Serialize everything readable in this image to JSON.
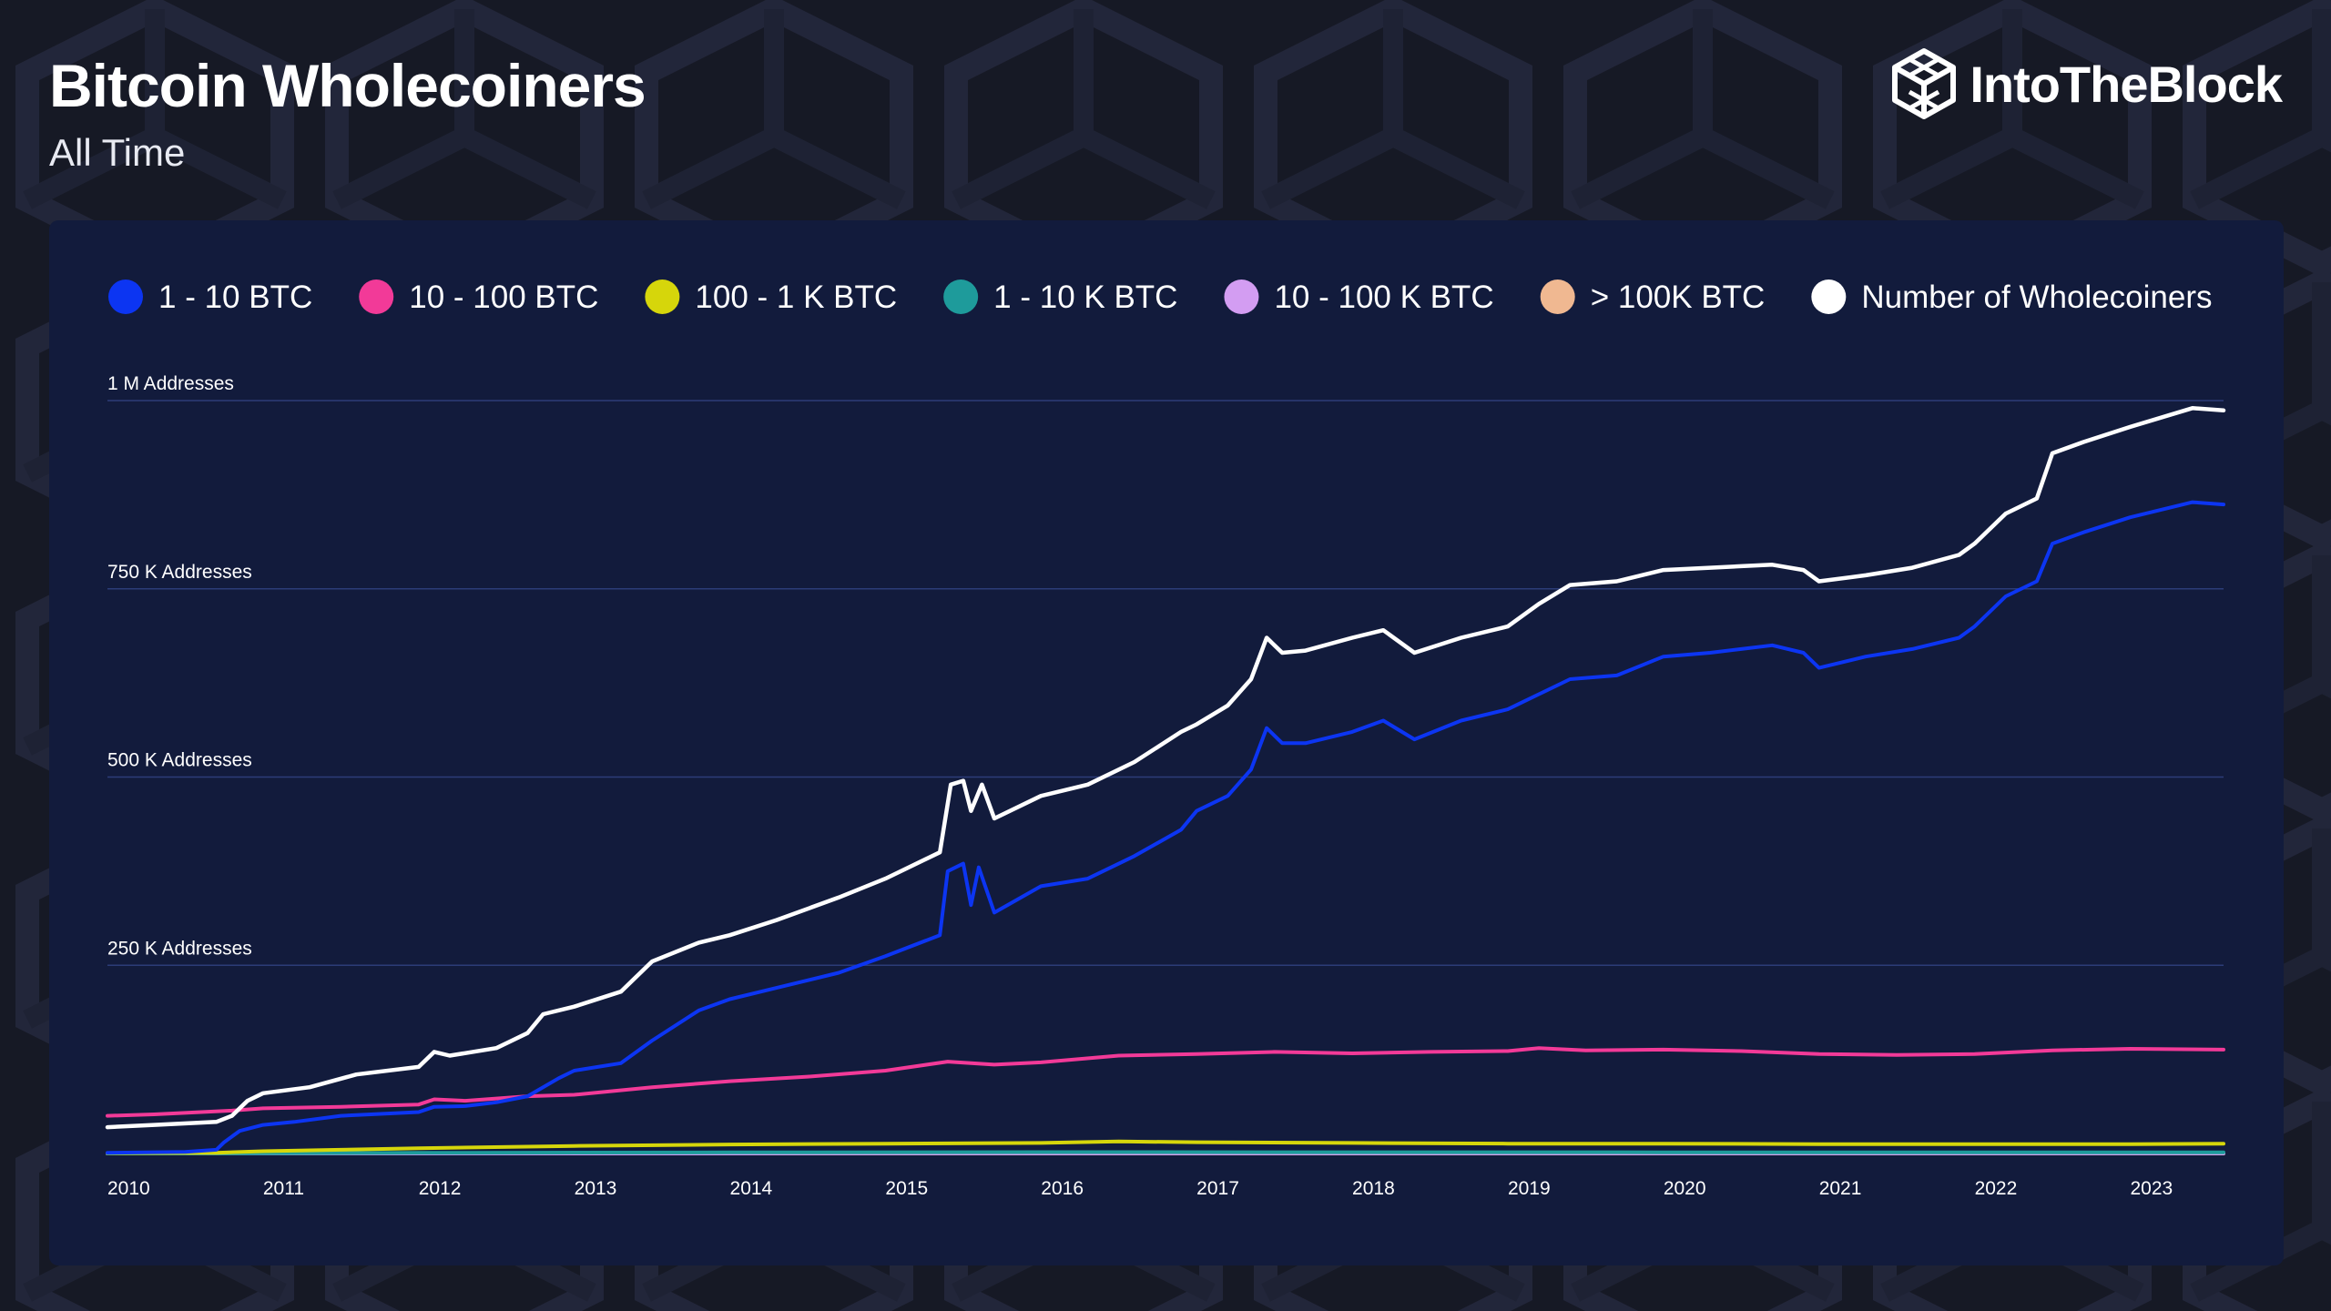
{
  "header": {
    "title": "Bitcoin Wholecoiners",
    "subtitle": "All Time",
    "brand": "IntoTheBlock"
  },
  "colors": {
    "background": "#161925",
    "panel": "#121b3c",
    "grid": "#2c3c78"
  },
  "chart_data": {
    "type": "line",
    "title": "Bitcoin Wholecoiners",
    "subtitle": "All Time",
    "xlim": [
      2010.0,
      2023.6
    ],
    "ylim": [
      0,
      1000000
    ],
    "yticks": [
      {
        "value": 250000,
        "label": "250 K Addresses"
      },
      {
        "value": 500000,
        "label": "500 K Addresses"
      },
      {
        "value": 750000,
        "label": "750 K Addresses"
      },
      {
        "value": 1000000,
        "label": "1 M Addresses"
      }
    ],
    "xticks": [
      {
        "value": 2010,
        "label": "2010"
      },
      {
        "value": 2011,
        "label": "2011"
      },
      {
        "value": 2012,
        "label": "2012"
      },
      {
        "value": 2013,
        "label": "2013"
      },
      {
        "value": 2014,
        "label": "2014"
      },
      {
        "value": 2015,
        "label": "2015"
      },
      {
        "value": 2016,
        "label": "2016"
      },
      {
        "value": 2017,
        "label": "2017"
      },
      {
        "value": 2018,
        "label": "2018"
      },
      {
        "value": 2019,
        "label": "2019"
      },
      {
        "value": 2020,
        "label": "2020"
      },
      {
        "value": 2021,
        "label": "2021"
      },
      {
        "value": 2022,
        "label": "2022"
      },
      {
        "value": 2023,
        "label": "2023"
      }
    ],
    "grid": true,
    "legend_position": "top-left",
    "series": [
      {
        "name": "1 - 10 BTC",
        "color": "#0c35f2",
        "points": [
          [
            2010.0,
            1000
          ],
          [
            2010.5,
            2000
          ],
          [
            2010.7,
            5000
          ],
          [
            2010.75,
            15000
          ],
          [
            2010.85,
            30000
          ],
          [
            2011.0,
            38000
          ],
          [
            2011.2,
            42000
          ],
          [
            2011.5,
            50000
          ],
          [
            2012.0,
            55000
          ],
          [
            2012.1,
            62000
          ],
          [
            2012.3,
            63000
          ],
          [
            2012.5,
            68000
          ],
          [
            2012.7,
            76000
          ],
          [
            2012.9,
            100000
          ],
          [
            2013.0,
            110000
          ],
          [
            2013.3,
            120000
          ],
          [
            2013.5,
            150000
          ],
          [
            2013.8,
            190000
          ],
          [
            2014.0,
            205000
          ],
          [
            2014.3,
            220000
          ],
          [
            2014.7,
            240000
          ],
          [
            2015.0,
            262000
          ],
          [
            2015.35,
            290000
          ],
          [
            2015.4,
            375000
          ],
          [
            2015.5,
            385000
          ],
          [
            2015.55,
            330000
          ],
          [
            2015.6,
            380000
          ],
          [
            2015.7,
            320000
          ],
          [
            2016.0,
            355000
          ],
          [
            2016.3,
            365000
          ],
          [
            2016.6,
            395000
          ],
          [
            2016.9,
            430000
          ],
          [
            2017.0,
            455000
          ],
          [
            2017.2,
            475000
          ],
          [
            2017.35,
            510000
          ],
          [
            2017.45,
            565000
          ],
          [
            2017.55,
            545000
          ],
          [
            2017.7,
            545000
          ],
          [
            2018.0,
            560000
          ],
          [
            2018.2,
            575000
          ],
          [
            2018.4,
            550000
          ],
          [
            2018.7,
            575000
          ],
          [
            2019.0,
            590000
          ],
          [
            2019.2,
            610000
          ],
          [
            2019.4,
            630000
          ],
          [
            2019.7,
            635000
          ],
          [
            2020.0,
            660000
          ],
          [
            2020.3,
            665000
          ],
          [
            2020.5,
            670000
          ],
          [
            2020.7,
            675000
          ],
          [
            2020.9,
            665000
          ],
          [
            2021.0,
            645000
          ],
          [
            2021.3,
            660000
          ],
          [
            2021.6,
            670000
          ],
          [
            2021.9,
            685000
          ],
          [
            2022.0,
            700000
          ],
          [
            2022.2,
            740000
          ],
          [
            2022.4,
            760000
          ],
          [
            2022.5,
            810000
          ],
          [
            2022.7,
            825000
          ],
          [
            2023.0,
            845000
          ],
          [
            2023.4,
            865000
          ],
          [
            2023.6,
            862000
          ]
        ]
      },
      {
        "name": "10 - 100 BTC",
        "color": "#f23a98",
        "points": [
          [
            2010.0,
            50000
          ],
          [
            2010.3,
            52000
          ],
          [
            2010.8,
            57000
          ],
          [
            2011.0,
            60000
          ],
          [
            2011.5,
            62000
          ],
          [
            2012.0,
            65000
          ],
          [
            2012.1,
            72000
          ],
          [
            2012.3,
            70000
          ],
          [
            2012.7,
            76000
          ],
          [
            2013.0,
            78000
          ],
          [
            2013.5,
            88000
          ],
          [
            2014.0,
            96000
          ],
          [
            2014.5,
            102000
          ],
          [
            2015.0,
            110000
          ],
          [
            2015.4,
            122000
          ],
          [
            2015.7,
            118000
          ],
          [
            2016.0,
            121000
          ],
          [
            2016.5,
            130000
          ],
          [
            2017.0,
            132000
          ],
          [
            2017.5,
            135000
          ],
          [
            2018.0,
            133000
          ],
          [
            2018.5,
            135000
          ],
          [
            2019.0,
            136000
          ],
          [
            2019.2,
            140000
          ],
          [
            2019.5,
            137000
          ],
          [
            2020.0,
            138000
          ],
          [
            2020.5,
            136000
          ],
          [
            2021.0,
            132000
          ],
          [
            2021.5,
            131000
          ],
          [
            2022.0,
            132000
          ],
          [
            2022.5,
            137000
          ],
          [
            2023.0,
            139000
          ],
          [
            2023.6,
            138000
          ]
        ]
      },
      {
        "name": "100 - 1 K BTC",
        "color": "#d6d60b",
        "points": [
          [
            2010.0,
            500
          ],
          [
            2010.7,
            1000
          ],
          [
            2011.0,
            3000
          ],
          [
            2011.5,
            5000
          ],
          [
            2012.0,
            7000
          ],
          [
            2013.0,
            10000
          ],
          [
            2014.0,
            12000
          ],
          [
            2015.0,
            13000
          ],
          [
            2016.0,
            14000
          ],
          [
            2016.5,
            16000
          ],
          [
            2017.0,
            15000
          ],
          [
            2018.0,
            14000
          ],
          [
            2019.0,
            13000
          ],
          [
            2020.0,
            13000
          ],
          [
            2021.0,
            12500
          ],
          [
            2022.0,
            12500
          ],
          [
            2023.0,
            12500
          ],
          [
            2023.6,
            13000
          ]
        ]
      },
      {
        "name": "1 - 10 K BTC",
        "color": "#1e9b9b",
        "points": [
          [
            2010.0,
            0
          ],
          [
            2011.0,
            300
          ],
          [
            2012.0,
            800
          ],
          [
            2014.0,
            1500
          ],
          [
            2016.0,
            1800
          ],
          [
            2018.0,
            1700
          ],
          [
            2020.0,
            1600
          ],
          [
            2023.6,
            1600
          ]
        ]
      },
      {
        "name": "10 - 100 K BTC",
        "color": "#d39df2",
        "points": [
          [
            2010.0,
            0
          ],
          [
            2012.0,
            50
          ],
          [
            2016.0,
            100
          ],
          [
            2023.6,
            100
          ]
        ]
      },
      {
        "name": "> 100K BTC",
        "color": "#f0b891",
        "points": [
          [
            2010.0,
            0
          ],
          [
            2023.6,
            0
          ]
        ]
      },
      {
        "name": "Number of Wholecoiners",
        "color": "#ffffff",
        "points": [
          [
            2010.0,
            35000
          ],
          [
            2010.3,
            38000
          ],
          [
            2010.7,
            42000
          ],
          [
            2010.8,
            50000
          ],
          [
            2010.9,
            70000
          ],
          [
            2011.0,
            80000
          ],
          [
            2011.3,
            88000
          ],
          [
            2011.6,
            105000
          ],
          [
            2012.0,
            115000
          ],
          [
            2012.1,
            135000
          ],
          [
            2012.2,
            130000
          ],
          [
            2012.5,
            140000
          ],
          [
            2012.7,
            160000
          ],
          [
            2012.8,
            185000
          ],
          [
            2013.0,
            195000
          ],
          [
            2013.3,
            215000
          ],
          [
            2013.5,
            255000
          ],
          [
            2013.8,
            280000
          ],
          [
            2014.0,
            290000
          ],
          [
            2014.3,
            310000
          ],
          [
            2014.7,
            340000
          ],
          [
            2015.0,
            365000
          ],
          [
            2015.35,
            400000
          ],
          [
            2015.42,
            490000
          ],
          [
            2015.5,
            495000
          ],
          [
            2015.55,
            455000
          ],
          [
            2015.62,
            490000
          ],
          [
            2015.7,
            445000
          ],
          [
            2016.0,
            475000
          ],
          [
            2016.3,
            490000
          ],
          [
            2016.6,
            520000
          ],
          [
            2016.9,
            560000
          ],
          [
            2017.0,
            570000
          ],
          [
            2017.2,
            595000
          ],
          [
            2017.35,
            630000
          ],
          [
            2017.45,
            685000
          ],
          [
            2017.55,
            665000
          ],
          [
            2017.7,
            668000
          ],
          [
            2018.0,
            685000
          ],
          [
            2018.2,
            695000
          ],
          [
            2018.4,
            665000
          ],
          [
            2018.7,
            685000
          ],
          [
            2019.0,
            700000
          ],
          [
            2019.2,
            730000
          ],
          [
            2019.4,
            755000
          ],
          [
            2019.7,
            760000
          ],
          [
            2020.0,
            775000
          ],
          [
            2020.3,
            778000
          ],
          [
            2020.5,
            780000
          ],
          [
            2020.7,
            782000
          ],
          [
            2020.9,
            775000
          ],
          [
            2021.0,
            760000
          ],
          [
            2021.3,
            768000
          ],
          [
            2021.6,
            778000
          ],
          [
            2021.9,
            795000
          ],
          [
            2022.0,
            810000
          ],
          [
            2022.2,
            850000
          ],
          [
            2022.4,
            870000
          ],
          [
            2022.5,
            930000
          ],
          [
            2022.7,
            945000
          ],
          [
            2023.0,
            965000
          ],
          [
            2023.4,
            990000
          ],
          [
            2023.6,
            987000
          ]
        ]
      }
    ]
  }
}
